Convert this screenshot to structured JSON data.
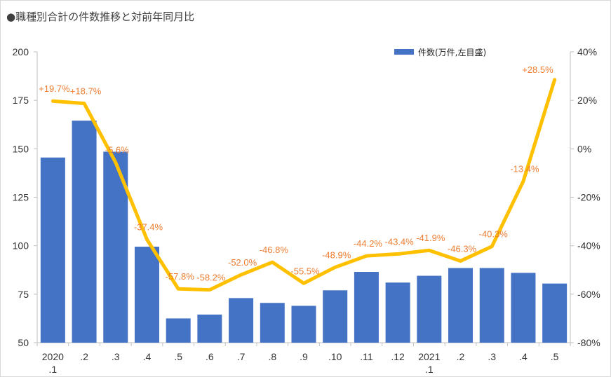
{
  "chart_data": {
    "type": "bar+line",
    "title": "●職種別合計の件数推移と対前年同月比",
    "categories": [
      "2020\n.1",
      ".2",
      ".3",
      ".4",
      ".5",
      ".6",
      ".7",
      ".8",
      ".9",
      ".10",
      ".11",
      ".12",
      "2021\n.1",
      ".2",
      ".3",
      ".4",
      ".5"
    ],
    "series": [
      {
        "name": "件数(万件,左目盛)",
        "type": "bar",
        "axis": "left",
        "color": "#4472c4",
        "values": [
          145.5,
          164.5,
          148.5,
          99.5,
          62.5,
          64.5,
          73,
          70.5,
          69,
          77,
          86.5,
          81,
          84.5,
          88.5,
          88.5,
          86,
          80.5
        ]
      },
      {
        "type": "line",
        "axis": "right",
        "color": "#ffc000",
        "label_color": "#ed7d31",
        "unit": "%",
        "values": [
          19.7,
          18.7,
          -5.6,
          -37.4,
          -57.8,
          -58.2,
          -52.0,
          -46.8,
          -55.5,
          -48.9,
          -44.2,
          -43.4,
          -41.9,
          -46.3,
          -40.3,
          -13.4,
          28.5
        ],
        "labels": [
          "+19.7%",
          "+18.7%",
          "-5.6%",
          "-37.4%",
          "-57.8%",
          "-58.2%",
          "-52.0%",
          "-46.8%",
          "-55.5%",
          "-48.9%",
          "-44.2%",
          "-43.4%",
          "-41.9%",
          "-46.3%",
          "-40.3%",
          "-13.4%",
          "+28.5%"
        ]
      }
    ],
    "y_left": {
      "ylim": [
        50,
        200
      ],
      "ticks": [
        50,
        75,
        100,
        125,
        150,
        175,
        200
      ]
    },
    "y_right": {
      "ylim": [
        -80,
        40
      ],
      "ticks": [
        "-80%",
        "-60%",
        "-40%",
        "-20%",
        "0%",
        "20%",
        "40%"
      ]
    },
    "grid": false,
    "legend_position": "top-right"
  }
}
